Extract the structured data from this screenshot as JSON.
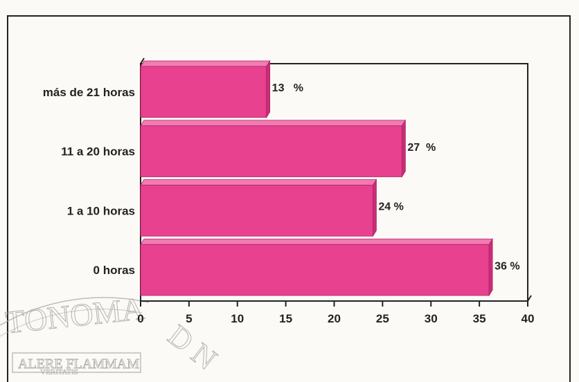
{
  "chart_data": {
    "type": "bar",
    "orientation": "horizontal",
    "categories": [
      "0 horas",
      "1 a 10 horas",
      "11 a 20 horas",
      "más de 21 horas"
    ],
    "values": [
      36,
      24,
      27,
      13
    ],
    "value_labels": [
      "36 %",
      "24 %",
      "27  %",
      "13   %"
    ],
    "xlim": [
      0,
      40
    ],
    "xticks": [
      0,
      5,
      10,
      15,
      20,
      25,
      30,
      35,
      40
    ],
    "title": "",
    "xlabel": "",
    "ylabel": "",
    "bar_color": "#e8418f",
    "bar_top_color": "#f27bb2",
    "bar_side_color": "#c72e77",
    "grid": false,
    "legend": "none",
    "style": "3d"
  },
  "watermark": {
    "text_top": "TONOMA",
    "text_right": "D N",
    "motto_1": "ALERE FLAMMAM",
    "motto_2": "VERITATIS"
  }
}
